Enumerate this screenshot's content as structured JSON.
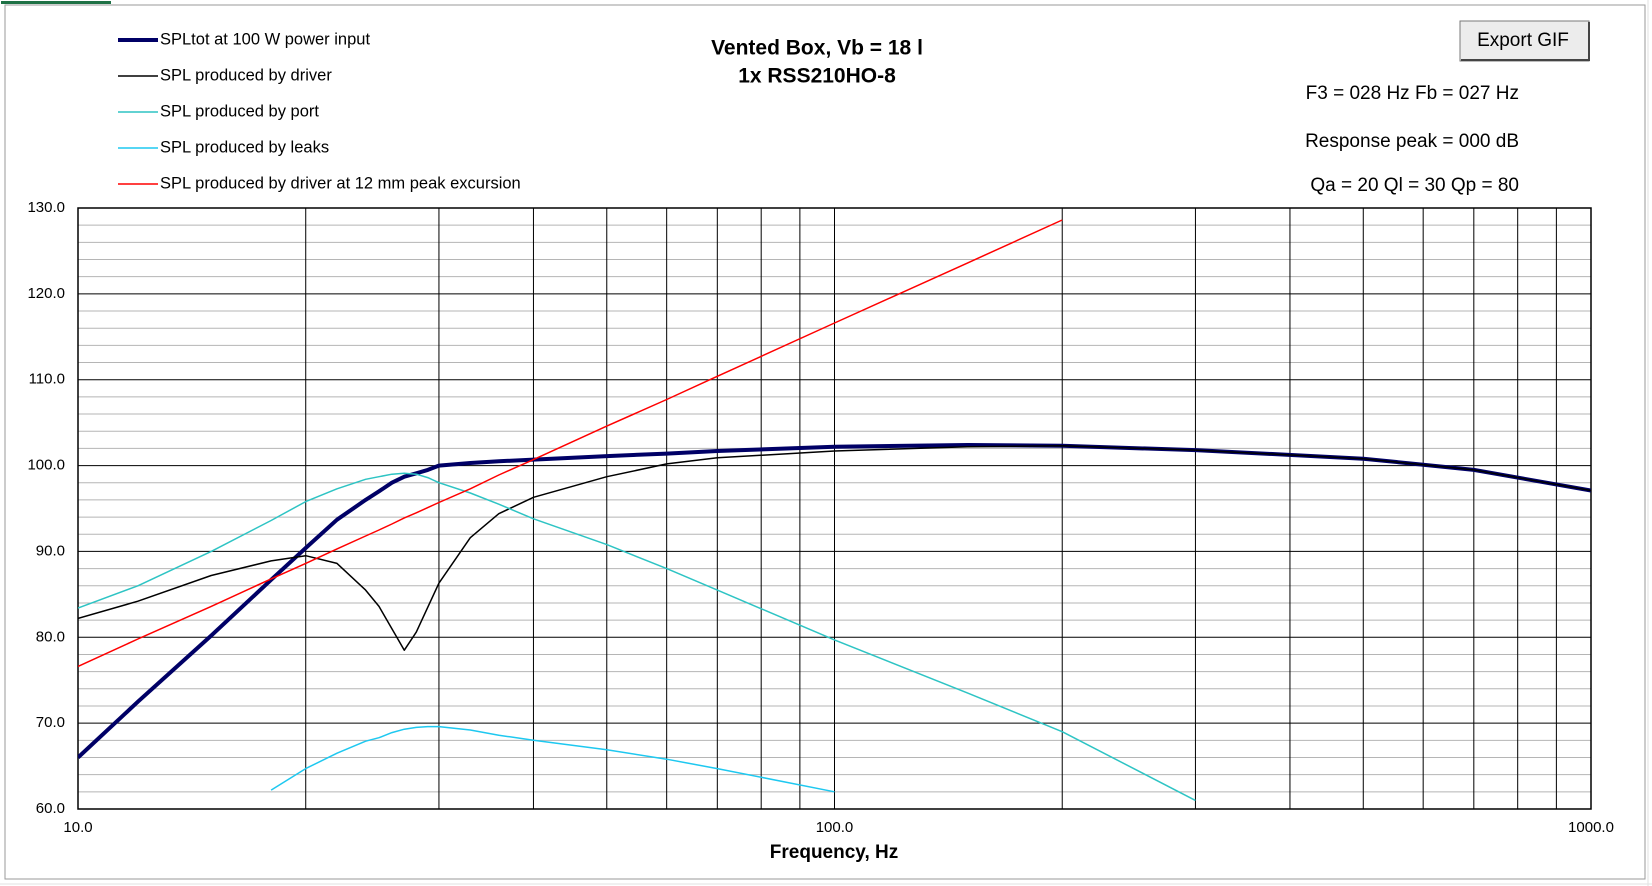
{
  "chart_data": {
    "type": "line",
    "title": "Vented Box, Vb = 18 l",
    "subtitle": "1x RSS210HO-8",
    "x_label": "Frequency, Hz",
    "button": "Export GIF",
    "annotations": [
      "F3 = 028 Hz  Fb = 027 Hz",
      "Response peak = 000 dB",
      "Qa = 20  Ql = 30  Qp = 80"
    ],
    "xscale": "log",
    "grid": true,
    "legend": "top-left",
    "xlim": [
      10,
      1000
    ],
    "xticks": [
      {
        "value": 10,
        "label": "10.0"
      },
      {
        "value": 100,
        "label": "100.0"
      },
      {
        "value": 1000,
        "label": "1000.0"
      }
    ],
    "minor_xticks": [
      20,
      30,
      40,
      50,
      60,
      70,
      80,
      90,
      200,
      300,
      400,
      500,
      600,
      700,
      800,
      900
    ],
    "ylim": [
      60,
      130
    ],
    "yticks": [
      {
        "value": 60,
        "label": "60.0"
      },
      {
        "value": 70,
        "label": "70.0"
      },
      {
        "value": 80,
        "label": "80.0"
      },
      {
        "value": 90,
        "label": "90.0"
      },
      {
        "value": 100,
        "label": "100.0"
      },
      {
        "value": 110,
        "label": "110.0"
      },
      {
        "value": 120,
        "label": "120.0"
      },
      {
        "value": 130,
        "label": "130.0"
      }
    ],
    "minor_yticks": [
      62,
      64,
      66,
      68,
      72,
      74,
      76,
      78,
      82,
      84,
      86,
      88,
      92,
      94,
      96,
      98,
      102,
      104,
      106,
      108,
      112,
      114,
      116,
      118,
      122,
      124,
      126,
      128
    ],
    "x": [
      10,
      12,
      15,
      18,
      20,
      22,
      24,
      25,
      26,
      27,
      28,
      29,
      30,
      33,
      36,
      40,
      50,
      60,
      70,
      100,
      150,
      200,
      300,
      500,
      600,
      700,
      1000
    ],
    "series": [
      {
        "name": "SPLtot at 100 W power input",
        "color": "#000066",
        "width": 4,
        "values": [
          66.0,
          72.5,
          80.2,
          86.7,
          90.4,
          93.7,
          96.0,
          97.0,
          98.0,
          98.7,
          99.1,
          99.5,
          100.0,
          100.3,
          100.5,
          100.7,
          101.1,
          101.4,
          101.7,
          102.2,
          102.4,
          102.3,
          101.8,
          100.8,
          100.1,
          99.5,
          97.1
        ]
      },
      {
        "name": "SPL produced by driver",
        "color": "#000000",
        "width": 1.5,
        "values": [
          82.2,
          84.2,
          87.2,
          88.9,
          89.5,
          88.6,
          85.5,
          83.6,
          81.0,
          78.5,
          80.6,
          83.5,
          86.3,
          91.6,
          94.4,
          96.3,
          98.7,
          100.2,
          100.9,
          101.7,
          102.2,
          102.3,
          101.8,
          100.8,
          100.1,
          99.5,
          97.1
        ]
      },
      {
        "name": "SPL produced by port",
        "color": "#2ec4c4",
        "width": 1.5,
        "values": [
          83.4,
          86.0,
          90.0,
          93.6,
          95.8,
          97.3,
          98.4,
          98.7,
          99.0,
          99.1,
          99.0,
          98.6,
          98.0,
          96.8,
          95.5,
          93.8,
          90.8,
          88.0,
          85.5,
          79.7,
          73.5,
          69.0,
          61.0,
          null,
          null,
          null,
          null
        ]
      },
      {
        "name": "SPL produced by leaks",
        "color": "#1ec8f0",
        "width": 1.5,
        "values": [
          null,
          null,
          null,
          62.2,
          64.7,
          66.5,
          67.9,
          68.3,
          68.9,
          69.3,
          69.5,
          69.6,
          69.6,
          69.2,
          68.6,
          68.0,
          66.9,
          65.8,
          64.7,
          62.0,
          null,
          null,
          null,
          null,
          null,
          null,
          null
        ]
      },
      {
        "name": "SPL produced by driver at 12 mm peak excursion",
        "color": "#ff0000",
        "width": 1.5,
        "values": [
          76.6,
          79.8,
          83.6,
          86.8,
          88.6,
          90.3,
          91.8,
          92.5,
          93.2,
          93.9,
          94.5,
          95.1,
          95.7,
          97.3,
          98.9,
          100.7,
          104.6,
          107.7,
          110.4,
          116.6,
          123.6,
          128.6,
          null,
          null,
          null,
          null,
          null
        ]
      }
    ]
  }
}
